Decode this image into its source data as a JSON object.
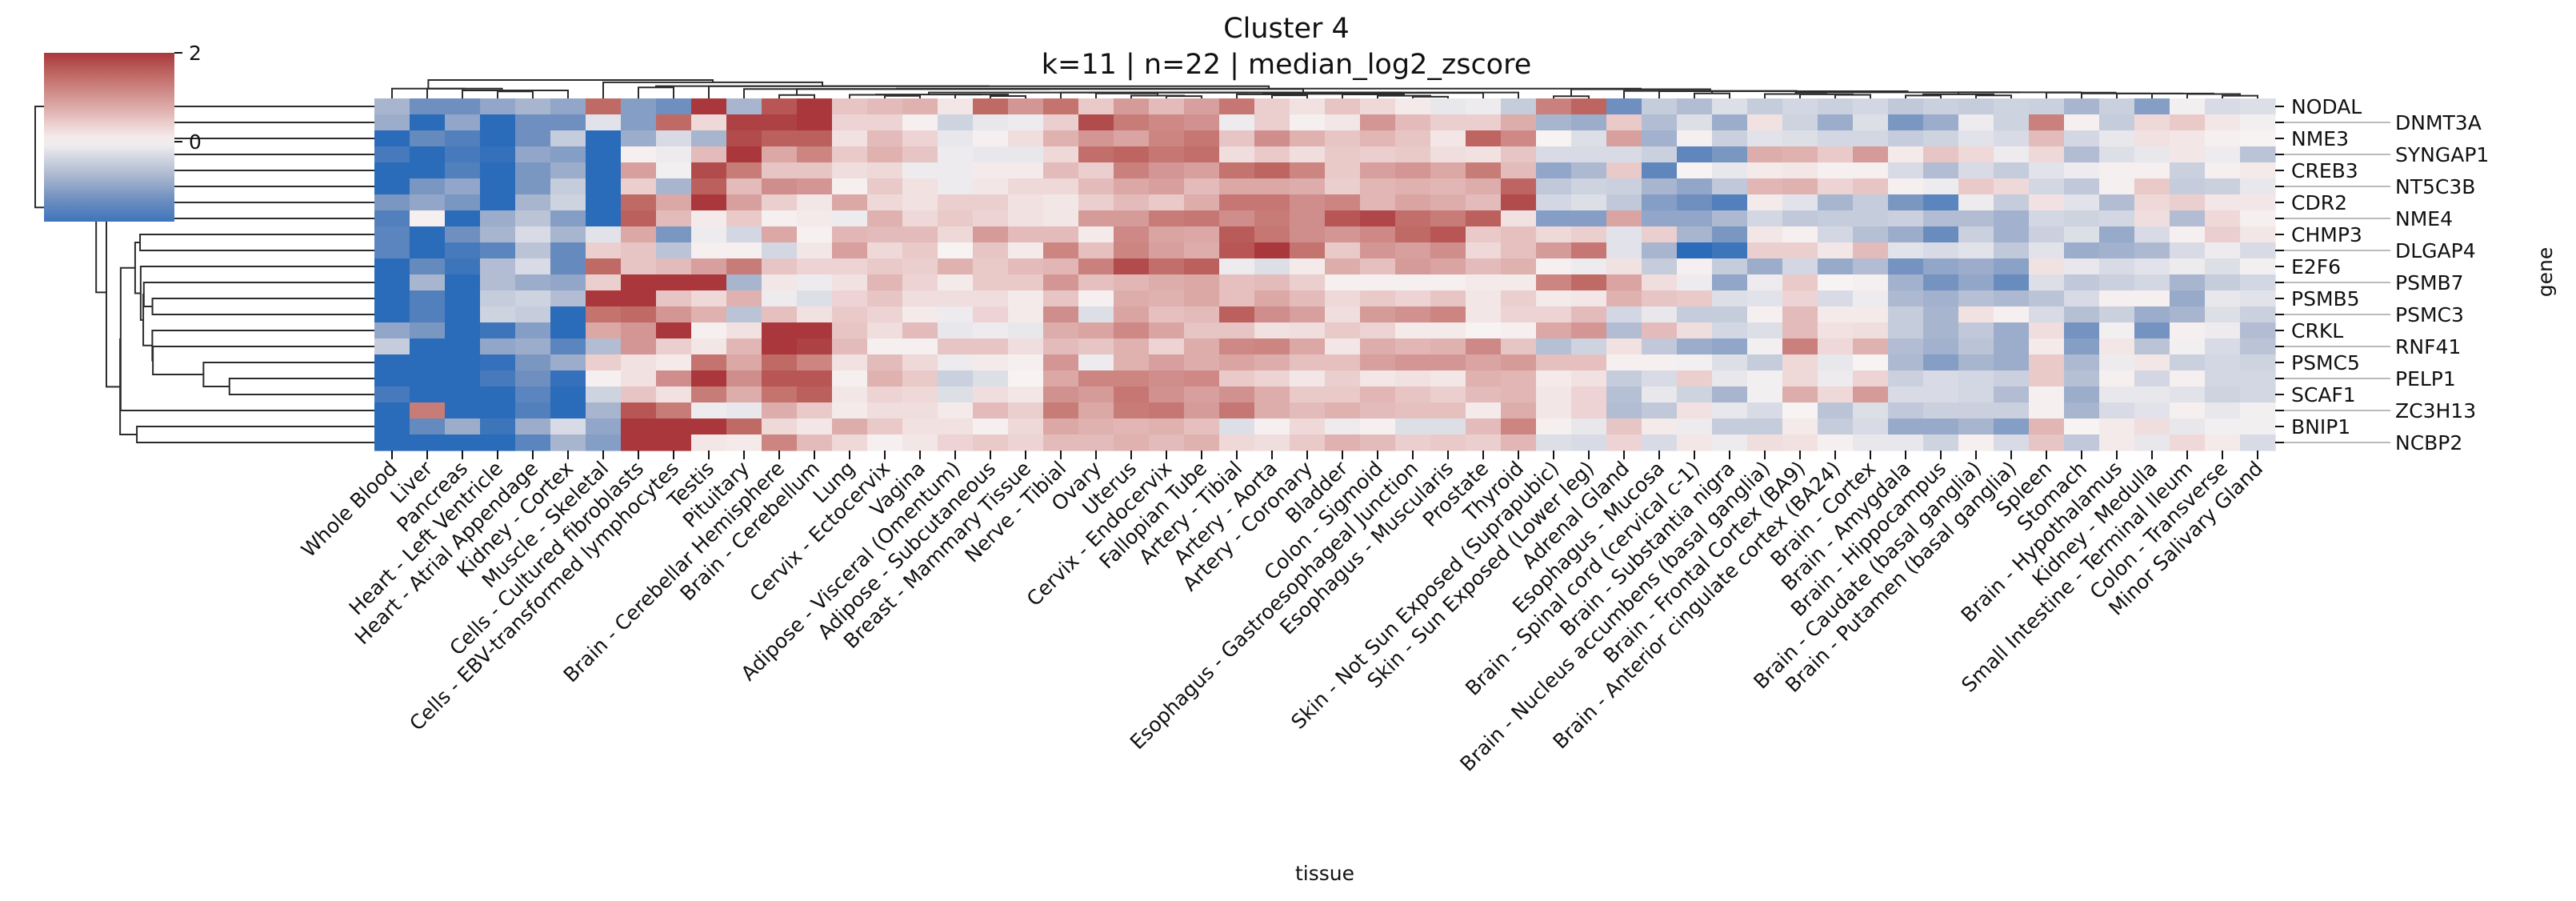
{
  "chart_data": {
    "type": "heatmap",
    "title": "Cluster 4",
    "subtitle": "k=11 | n=22 | median_log2_zscore",
    "xlabel": "tissue",
    "ylabel": "gene",
    "rows": [
      "NODAL",
      "DNMT3A",
      "NME3",
      "SYNGAP1",
      "CREB3",
      "NT5C3B",
      "CDR2",
      "NME4",
      "CHMP3",
      "DLGAP4",
      "E2F6",
      "PSMB7",
      "PSMB5",
      "PSMC3",
      "CRKL",
      "RNF41",
      "PSMC5",
      "PELP1",
      "SCAF1",
      "ZC3H13",
      "BNIP1",
      "NCBP2"
    ],
    "columns": [
      "Whole Blood",
      "Liver",
      "Pancreas",
      "Heart - Left Ventricle",
      "Heart - Atrial Appendage",
      "Kidney - Cortex",
      "Muscle - Skeletal",
      "Cells - Cultured fibroblasts",
      "Cells - EBV-transformed lymphocytes",
      "Testis",
      "Pituitary",
      "Brain - Cerebellar Hemisphere",
      "Brain - Cerebellum",
      "Lung",
      "Cervix - Ectocervix",
      "Vagina",
      "Adipose - Visceral (Omentum)",
      "Adipose - Subcutaneous",
      "Breast - Mammary Tissue",
      "Nerve - Tibial",
      "Ovary",
      "Uterus",
      "Cervix - Endocervix",
      "Fallopian Tube",
      "Artery - Tibial",
      "Artery - Aorta",
      "Artery - Coronary",
      "Bladder",
      "Colon - Sigmoid",
      "Esophagus - Gastroesophageal Junction",
      "Esophagus - Muscularis",
      "Prostate",
      "Thyroid",
      "Skin - Not Sun Exposed (Suprapubic)",
      "Skin - Sun Exposed (Lower leg)",
      "Adrenal Gland",
      "Esophagus - Mucosa",
      "Brain - Spinal cord (cervical c-1)",
      "Brain - Substantia nigra",
      "Brain - Nucleus accumbens (basal ganglia)",
      "Brain - Frontal Cortex (BA9)",
      "Brain - Anterior cingulate cortex (BA24)",
      "Brain - Cortex",
      "Brain - Amygdala",
      "Brain - Hippocampus",
      "Brain - Caudate (basal ganglia)",
      "Brain - Putamen (basal ganglia)",
      "Spleen",
      "Stomach",
      "Brain - Hypothalamus",
      "Kidney - Medulla",
      "Small Intestine - Terminal Ileum",
      "Colon - Transverse",
      "Minor Salivary Gland"
    ],
    "values": [
      [
        -0.8,
        -1.3,
        -1.3,
        -1.0,
        -0.8,
        -1.0,
        1.5,
        -1.1,
        -1.3,
        2,
        -0.8,
        1.7,
        2,
        0.5,
        0.6,
        0.7,
        0.15,
        1.5,
        1.0,
        1.4,
        0.45,
        0.95,
        0.6,
        0.9,
        1.35,
        0.4,
        0.2,
        0.5,
        0.3,
        0.1,
        -0.15,
        -0.1,
        -0.5,
        1.25,
        1.55,
        -1.3,
        -0.5,
        -0.7,
        -0.25,
        -0.5,
        -0.35,
        -0.45,
        -0.35,
        -0.55,
        -0.45,
        -0.5,
        -0.4,
        -0.45,
        -0.8,
        -0.45,
        -1.1,
        -0.05,
        -0.3,
        -0.25
      ],
      [
        -0.9,
        -2,
        -1.0,
        -2,
        -1.3,
        -1.3,
        -0.2,
        -1.1,
        1.5,
        0.3,
        1.9,
        1.9,
        2,
        0.35,
        0.35,
        0.05,
        -0.4,
        -0.15,
        -0.1,
        0.4,
        1.8,
        1.3,
        1.15,
        1.05,
        -0.1,
        0.4,
        0.05,
        0.15,
        1.0,
        0.6,
        0.4,
        0.4,
        0.75,
        -0.8,
        -0.9,
        0.45,
        -0.7,
        -0.25,
        -0.9,
        0.2,
        -0.4,
        -0.9,
        -0.25,
        -1.2,
        -0.9,
        -0.1,
        -0.4,
        1.25,
        0.05,
        -0.5,
        0.3,
        0.45,
        0.15,
        -0.05
      ],
      [
        -2,
        -1.4,
        -1.6,
        -2,
        -1.3,
        -0.5,
        -2,
        -0.9,
        -0.3,
        -0.8,
        1.8,
        1.6,
        1.6,
        0.2,
        0.6,
        0.35,
        -0.15,
        0.05,
        0.25,
        0.7,
        1.0,
        0.85,
        1.2,
        1.35,
        0.5,
        1.1,
        0.7,
        0.5,
        0.65,
        0.5,
        0.15,
        1.55,
        1.15,
        0.0,
        -0.25,
        0.9,
        -0.85,
        0.05,
        -0.45,
        -0.2,
        -0.25,
        -0.35,
        -0.35,
        -0.5,
        -0.4,
        -0.2,
        -0.3,
        0.6,
        -0.35,
        -0.15,
        0.2,
        0.15,
        0.05,
        0.0
      ],
      [
        -1.7,
        -2,
        -1.7,
        -1.9,
        -1.0,
        -1.1,
        -2,
        0.05,
        -0.1,
        0.6,
        2,
        0.8,
        1.2,
        0.45,
        0.7,
        0.5,
        -0.1,
        -0.15,
        -0.15,
        0.3,
        1.45,
        1.55,
        1.35,
        1.45,
        0.25,
        0.45,
        0.25,
        0.45,
        0.4,
        0.45,
        0.25,
        0.2,
        0.5,
        -0.3,
        -0.3,
        -0.3,
        -0.45,
        -1.45,
        -1.2,
        0.75,
        0.7,
        0.45,
        0.95,
        0.1,
        0.5,
        0.3,
        -0.1,
        0.3,
        -0.7,
        -0.25,
        -0.15,
        0.15,
        -0.1,
        -0.6
      ],
      [
        -2,
        -2,
        -1.6,
        -2,
        -1.2,
        -0.9,
        -2,
        0.9,
        -0.05,
        1.8,
        1.3,
        0.5,
        0.5,
        0.25,
        0.3,
        -0.1,
        -0.1,
        0.1,
        0.1,
        0.6,
        0.4,
        1.25,
        1.0,
        0.9,
        1.4,
        1.55,
        1.2,
        0.45,
        0.9,
        1.0,
        0.8,
        1.3,
        0.6,
        -1.0,
        -0.75,
        0.45,
        -1.45,
        0.0,
        -0.15,
        0.1,
        0.15,
        0.05,
        0.05,
        -0.3,
        -0.7,
        -0.3,
        -0.5,
        -0.2,
        -0.1,
        0.05,
        0.05,
        -0.45,
        0.05,
        0.1
      ],
      [
        -2,
        -1.2,
        -1.0,
        -2,
        -1.2,
        -0.5,
        -2,
        0.4,
        -0.8,
        1.6,
        0.6,
        1.1,
        1.0,
        0.05,
        0.45,
        0.2,
        -0.1,
        0.15,
        0.3,
        0.3,
        0.6,
        0.8,
        0.9,
        0.6,
        0.8,
        0.8,
        0.75,
        0.4,
        0.65,
        0.7,
        0.65,
        0.75,
        1.55,
        -0.55,
        -0.4,
        -0.45,
        -0.8,
        -1.0,
        -0.55,
        0.65,
        0.7,
        0.35,
        0.5,
        0.05,
        -0.1,
        0.45,
        0.3,
        -0.35,
        -0.55,
        0.05,
        0.45,
        -0.5,
        -0.45,
        -0.15
      ],
      [
        -1.2,
        -1.0,
        -1.2,
        -2,
        -0.8,
        -0.4,
        -2,
        1.5,
        0.8,
        2,
        0.9,
        0.4,
        0.15,
        0.8,
        0.3,
        0.2,
        0.4,
        0.4,
        0.2,
        0.15,
        0.4,
        0.6,
        0.45,
        0.75,
        1.35,
        1.35,
        1.1,
        1.2,
        0.65,
        0.85,
        0.75,
        0.6,
        1.8,
        -0.35,
        -0.25,
        -0.55,
        -1.1,
        -1.3,
        -1.6,
        0.1,
        -0.2,
        -0.8,
        -0.5,
        -1.2,
        -1.5,
        -0.1,
        -0.5,
        0.2,
        -0.2,
        -0.7,
        0.3,
        0.4,
        0.15,
        0.15
      ],
      [
        -1.6,
        0.05,
        -2,
        -0.9,
        -0.6,
        -1.1,
        -2,
        1.6,
        0.6,
        0.1,
        0.45,
        0.05,
        0.1,
        -0.1,
        0.7,
        0.3,
        0.45,
        0.35,
        0.2,
        0.15,
        0.95,
        0.95,
        1.3,
        1.35,
        1.1,
        1.3,
        1.1,
        1.7,
        1.85,
        1.45,
        1.3,
        1.6,
        0.2,
        -1.1,
        -1.1,
        0.85,
        -1.0,
        -1.0,
        -0.75,
        -0.35,
        -0.55,
        -0.5,
        -0.5,
        -0.45,
        -0.7,
        -0.7,
        -0.85,
        -0.35,
        -0.4,
        -0.35,
        0.25,
        -0.7,
        0.3,
        0.05
      ],
      [
        -1.5,
        -2,
        -1.3,
        -0.8,
        -0.3,
        -0.8,
        -0.2,
        0.8,
        -1.2,
        -0.1,
        -0.35,
        0.8,
        0.03,
        0.65,
        0.6,
        0.6,
        0.3,
        0.95,
        0.6,
        0.6,
        0.1,
        1.15,
        0.85,
        0.8,
        1.65,
        1.35,
        1.1,
        1.0,
        1.15,
        1.5,
        1.7,
        0.45,
        0.55,
        0.3,
        0.4,
        -0.2,
        0.4,
        -0.8,
        -1.2,
        0.15,
        0.05,
        -0.35,
        -0.65,
        -0.9,
        -1.35,
        -0.45,
        -0.85,
        -0.45,
        -0.25,
        -0.95,
        -0.3,
        0.05,
        0.4,
        0.15
      ],
      [
        -1.5,
        -2,
        -1.7,
        -1.5,
        -0.6,
        -1.4,
        0.4,
        0.5,
        -0.6,
        0.05,
        0.05,
        -0.35,
        0.15,
        0.9,
        0.3,
        0.45,
        0.0,
        0.5,
        0.1,
        1.2,
        0.55,
        1.2,
        0.9,
        0.75,
        1.7,
        2,
        1.4,
        0.45,
        1.0,
        0.9,
        1.1,
        0.3,
        0.55,
        0.95,
        1.35,
        -0.2,
        -0.8,
        -2,
        -1.8,
        0.4,
        0.4,
        0.15,
        0.6,
        -0.2,
        -0.3,
        -0.2,
        -0.55,
        -0.2,
        -0.9,
        -0.85,
        -0.75,
        -0.3,
        -0.1,
        -0.3
      ],
      [
        -2,
        -1.4,
        -1.8,
        -0.7,
        -0.3,
        -1.4,
        1.5,
        0.5,
        0.6,
        0.9,
        1.3,
        0.5,
        0.35,
        0.35,
        0.45,
        0.4,
        0.7,
        0.45,
        0.6,
        0.65,
        1.25,
        1.8,
        1.45,
        1.6,
        -0.1,
        -0.25,
        0.1,
        0.75,
        0.55,
        0.95,
        0.85,
        0.6,
        0.7,
        0.05,
        -0.1,
        0.2,
        -0.5,
        0.05,
        -0.5,
        -0.9,
        -0.35,
        -0.95,
        -0.7,
        -1.25,
        -1.0,
        -0.9,
        -1.05,
        0.2,
        -0.15,
        -0.3,
        -0.2,
        -0.1,
        -0.25,
        -0.05
      ],
      [
        -2,
        -0.8,
        -2,
        -0.7,
        -0.9,
        -1.0,
        0.4,
        2,
        2,
        2,
        -0.8,
        0.15,
        -0.1,
        0.2,
        0.65,
        0.35,
        0.1,
        0.45,
        0.45,
        1.0,
        0.55,
        0.65,
        0.75,
        0.8,
        0.55,
        0.6,
        0.4,
        0.05,
        0.05,
        0.05,
        0.05,
        0.1,
        0.1,
        1.2,
        1.5,
        0.85,
        0.25,
        -0.1,
        -1.0,
        -0.1,
        0.45,
        0.0,
        0.05,
        -0.85,
        -1.25,
        -1.0,
        -1.35,
        -0.25,
        -0.55,
        -0.45,
        -0.35,
        -0.8,
        -0.5,
        -0.35
      ],
      [
        -2,
        -1.6,
        -2,
        -0.5,
        -0.4,
        -0.7,
        2,
        2,
        0.5,
        0.3,
        0.7,
        -0.1,
        -0.25,
        0.35,
        0.5,
        0.25,
        0.25,
        0.25,
        0.1,
        0.5,
        0.05,
        0.75,
        0.7,
        0.8,
        0.55,
        0.8,
        0.6,
        0.3,
        0.45,
        0.35,
        0.5,
        0.15,
        0.4,
        0.1,
        0.15,
        0.7,
        0.5,
        0.45,
        -0.25,
        -0.2,
        0.35,
        -0.3,
        -0.1,
        -0.75,
        -0.85,
        -0.65,
        -0.75,
        -0.6,
        -0.3,
        0.05,
        0.05,
        -0.95,
        -0.15,
        -0.2
      ],
      [
        -2,
        -1.6,
        -2,
        -0.4,
        -0.5,
        -2,
        1.4,
        1.5,
        1.0,
        0.7,
        -0.6,
        0.55,
        0.2,
        0.45,
        0.35,
        0.1,
        -0.1,
        0.35,
        0.1,
        1.1,
        -0.25,
        0.85,
        0.55,
        0.6,
        1.6,
        1.1,
        0.9,
        0.25,
        0.95,
        1.05,
        1.2,
        0.15,
        0.35,
        0.35,
        0.6,
        -0.35,
        -0.15,
        -0.5,
        -0.5,
        0.05,
        0.6,
        0.1,
        0.1,
        -0.5,
        -0.8,
        0.2,
        0.05,
        -0.3,
        -0.65,
        -0.45,
        -0.9,
        -0.8,
        -0.25,
        -0.45
      ],
      [
        -1.0,
        -1.2,
        -2,
        -1.8,
        -1.1,
        -2,
        0.8,
        1.0,
        2,
        0.05,
        0.2,
        2,
        2,
        0.5,
        0.25,
        0.6,
        -0.15,
        -0.1,
        -0.15,
        0.75,
        0.85,
        1.15,
        0.85,
        0.5,
        0.5,
        0.2,
        0.25,
        0.45,
        0.35,
        0.1,
        0.1,
        0.0,
        0.05,
        0.8,
        1.0,
        -0.7,
        0.6,
        0.25,
        -0.35,
        -0.25,
        0.6,
        0.2,
        0.25,
        -0.5,
        -0.8,
        -0.55,
        -0.9,
        0.25,
        -1.25,
        -0.05,
        -1.25,
        0.05,
        -0.1,
        -0.7
      ],
      [
        -0.5,
        -2,
        -2,
        -1.0,
        -0.9,
        -1.5,
        -0.7,
        1.0,
        0.4,
        0.15,
        0.65,
        2,
        1.9,
        0.6,
        0.05,
        0.05,
        0.5,
        0.5,
        0.25,
        0.6,
        0.5,
        0.7,
        0.35,
        0.75,
        1.15,
        1.2,
        0.8,
        0.15,
        0.75,
        0.65,
        0.7,
        1.15,
        0.5,
        -0.65,
        -0.4,
        0.2,
        -0.55,
        -0.9,
        -1.0,
        -0.05,
        1.25,
        0.3,
        0.7,
        -0.7,
        -0.85,
        -0.6,
        -0.9,
        0.1,
        -1.1,
        0.15,
        -0.6,
        -0.05,
        -0.3,
        -0.6
      ],
      [
        -2,
        -2,
        -2,
        -1.9,
        -1.2,
        -0.9,
        0.4,
        0.2,
        0.1,
        1.4,
        0.8,
        1.5,
        1.2,
        0.2,
        0.6,
        0.3,
        -0.1,
        0.1,
        0.05,
        1.0,
        -0.1,
        0.7,
        0.9,
        0.75,
        0.85,
        0.75,
        0.55,
        0.55,
        0.9,
        1.0,
        1.0,
        0.85,
        0.95,
        0.55,
        0.55,
        0.05,
        0.05,
        -0.05,
        -0.25,
        -0.5,
        0.3,
        -0.15,
        0.0,
        -0.75,
        -1.1,
        -0.8,
        -0.9,
        0.45,
        -0.75,
        -0.1,
        0.15,
        -0.45,
        -0.35,
        -0.4
      ],
      [
        -2,
        -2,
        -2,
        -1.7,
        -1.3,
        -1.9,
        0.05,
        0.2,
        1.1,
        2,
        1.1,
        1.7,
        1.7,
        0.05,
        0.7,
        0.45,
        -0.45,
        -0.25,
        0.0,
        0.8,
        1.2,
        1.2,
        1.1,
        1.15,
        0.45,
        0.35,
        0.15,
        0.4,
        0.15,
        0.2,
        0.15,
        0.7,
        0.65,
        0.1,
        0.2,
        -0.5,
        -0.3,
        0.4,
        -0.15,
        -0.05,
        0.3,
        -0.1,
        0.35,
        -0.45,
        -0.3,
        -0.35,
        -0.45,
        0.45,
        -0.65,
        0.05,
        -0.35,
        0.05,
        -0.35,
        -0.35
      ],
      [
        -1.7,
        -2,
        -2,
        -2,
        -1.5,
        -2,
        -0.4,
        0.5,
        0.2,
        1.3,
        0.75,
        1.4,
        1.6,
        0.15,
        0.35,
        0.3,
        -0.25,
        0.25,
        0.15,
        1.05,
        0.95,
        1.35,
        1.05,
        0.9,
        1.05,
        0.75,
        0.45,
        0.45,
        0.65,
        0.5,
        0.4,
        0.6,
        0.65,
        0.15,
        0.35,
        -0.65,
        -0.15,
        -0.4,
        -0.8,
        -0.05,
        0.75,
        0.3,
        0.95,
        -0.3,
        -0.3,
        -0.35,
        -0.7,
        0.05,
        -0.9,
        -0.15,
        -0.15,
        -0.2,
        -0.4,
        -0.35
      ],
      [
        -2,
        1.3,
        -2,
        -2,
        -1.6,
        -2,
        -0.8,
        1.7,
        1.3,
        -0.1,
        -0.15,
        0.75,
        0.45,
        0.1,
        0.25,
        0.25,
        0.1,
        0.6,
        0.4,
        1.3,
        0.8,
        1.3,
        1.35,
        0.95,
        1.35,
        0.75,
        0.6,
        0.7,
        0.6,
        0.55,
        0.55,
        0.1,
        0.75,
        0.15,
        0.35,
        -0.7,
        -0.55,
        0.2,
        -0.15,
        -0.3,
        0.0,
        -0.6,
        -0.25,
        -0.55,
        -0.45,
        -0.45,
        -0.45,
        0.05,
        -0.8,
        -0.3,
        -0.2,
        0.05,
        -0.15,
        -0.05
      ],
      [
        -2,
        -1.4,
        -0.9,
        -1.8,
        -0.9,
        -0.3,
        -1.0,
        2,
        2,
        2,
        1.5,
        0.3,
        0.15,
        0.75,
        0.45,
        0.2,
        0.2,
        0.05,
        0.3,
        0.8,
        0.7,
        0.65,
        0.7,
        0.55,
        -0.25,
        0.05,
        0.3,
        -0.1,
        0.05,
        -0.25,
        -0.25,
        0.6,
        1.2,
        0.05,
        -0.15,
        0.5,
        0.1,
        -0.1,
        -0.5,
        -0.5,
        0.1,
        -0.5,
        -0.3,
        -0.95,
        -0.95,
        -0.8,
        -1.1,
        0.65,
        0.0,
        0.1,
        0.25,
        -0.15,
        -0.05,
        -0.05
      ],
      [
        -2,
        -2,
        -2,
        -2,
        -1.5,
        -0.8,
        -1.1,
        2,
        2,
        0.15,
        0.1,
        1.2,
        0.6,
        0.3,
        0.05,
        0.15,
        0.35,
        0.45,
        0.35,
        0.6,
        0.6,
        0.7,
        0.6,
        0.7,
        0.3,
        0.25,
        0.45,
        0.7,
        0.6,
        0.4,
        0.45,
        0.4,
        0.65,
        -0.25,
        -0.3,
        0.35,
        -0.3,
        0.15,
        -0.1,
        0.25,
        0.2,
        0.05,
        -0.15,
        -0.15,
        -0.4,
        0.05,
        -0.3,
        0.5,
        -0.55,
        0.1,
        -0.15,
        0.3,
        0.1,
        -0.3
      ]
    ],
    "color_range": [
      -1.8,
      2
    ],
    "center": 0,
    "colormap": [
      {
        "value": -2.0,
        "color": "#2a6bba"
      },
      {
        "value": -1.3,
        "color": "#6e8fbf"
      },
      {
        "value": -0.8,
        "color": "#a8b5ce"
      },
      {
        "value": -0.3,
        "color": "#d8dbe5"
      },
      {
        "value": 0.0,
        "color": "#f7f3f3"
      },
      {
        "value": 0.3,
        "color": "#efd8d8"
      },
      {
        "value": 0.8,
        "color": "#dba8a6"
      },
      {
        "value": 1.5,
        "color": "#c06a66"
      },
      {
        "value": 2.0,
        "color": "#a9373b"
      }
    ],
    "colorbar": {
      "ticks": [
        2,
        0
      ],
      "tick_labels": [
        "2",
        "0"
      ]
    }
  }
}
